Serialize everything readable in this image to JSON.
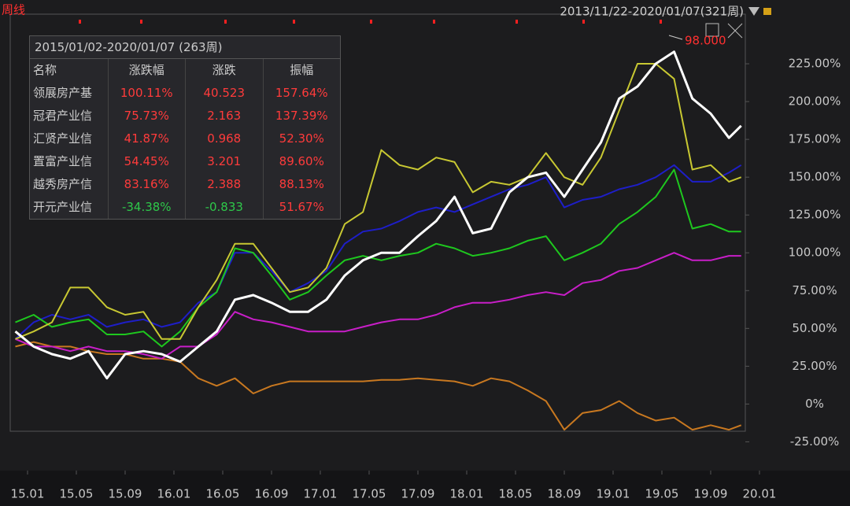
{
  "header": {
    "period": "周线",
    "range": "2013/11/22-2020/01/07(321周)"
  },
  "chart_data": {
    "type": "line",
    "annotation": "98.000",
    "x": [
      -1,
      0.5,
      2,
      3.5,
      5,
      6.5,
      8,
      9.5,
      11,
      12.5,
      14,
      15.5,
      17,
      18.5,
      20,
      21.5,
      23,
      24.5,
      26,
      27.5,
      29,
      30.5,
      32,
      33.5,
      35,
      36.5,
      38,
      39.5,
      41,
      42.5,
      44,
      45.5,
      47,
      48.5,
      50,
      51.5,
      53,
      54.5,
      56,
      57.5,
      58.5
    ],
    "xlim": [
      -1.42,
      58.84
    ],
    "xticks": [
      {
        "value": 0,
        "label": "15.01"
      },
      {
        "value": 4,
        "label": "15.05"
      },
      {
        "value": 8,
        "label": "15.09"
      },
      {
        "value": 12,
        "label": "16.01"
      },
      {
        "value": 16,
        "label": "16.05"
      },
      {
        "value": 20,
        "label": "16.09"
      },
      {
        "value": 24,
        "label": "17.01"
      },
      {
        "value": 28,
        "label": "17.05"
      },
      {
        "value": 32,
        "label": "17.09"
      },
      {
        "value": 36,
        "label": "18.01"
      },
      {
        "value": 40,
        "label": "18.05"
      },
      {
        "value": 44,
        "label": "18.09"
      },
      {
        "value": 48,
        "label": "19.01"
      },
      {
        "value": 52,
        "label": "19.05"
      },
      {
        "value": 56,
        "label": "19.09"
      },
      {
        "value": 60,
        "label": "20.01"
      }
    ],
    "ylim": [
      -18,
      257.8
    ],
    "yticks": [
      {
        "value": 225,
        "label": "225.00%"
      },
      {
        "value": 200,
        "label": "200.00%"
      },
      {
        "value": 175,
        "label": "175.00%"
      },
      {
        "value": 150,
        "label": "150.00%"
      },
      {
        "value": 125,
        "label": "125.00%"
      },
      {
        "value": 100,
        "label": "100.00%"
      },
      {
        "value": 75,
        "label": "75.00%"
      },
      {
        "value": 50,
        "label": "50.00%"
      },
      {
        "value": 25,
        "label": "25.00%"
      },
      {
        "value": 0,
        "label": "0%"
      },
      {
        "value": -25,
        "label": "-25.00%"
      }
    ],
    "grid": false,
    "series": [
      {
        "name": "领展房产基",
        "color": "#ffffff",
        "values": [
          48,
          38,
          33,
          30,
          35,
          17,
          33,
          35,
          33,
          28,
          38,
          48,
          69,
          72,
          67,
          61,
          61,
          69,
          85,
          95,
          100,
          100,
          111,
          121,
          137,
          113,
          116,
          140,
          150,
          153,
          137,
          155,
          173,
          202,
          210,
          225,
          233,
          202,
          192,
          176,
          184
        ]
      },
      {
        "name": "冠君产业信",
        "color": "#c8c832",
        "values": [
          43,
          48,
          54,
          77,
          77,
          64,
          59,
          61,
          43,
          43,
          64,
          82,
          106,
          106,
          90,
          74,
          77,
          90,
          119,
          127,
          168,
          158,
          155,
          163,
          160,
          140,
          147,
          145,
          150,
          166,
          150,
          145,
          163,
          194,
          225,
          225,
          215,
          155,
          158,
          147,
          150
        ]
      },
      {
        "name": "汇贤产业信",
        "color": "#c81ec8",
        "values": [
          43,
          38,
          38,
          35,
          38,
          35,
          35,
          33,
          30,
          38,
          38,
          46,
          61,
          56,
          54,
          51,
          48,
          48,
          48,
          51,
          54,
          56,
          56,
          59,
          64,
          67,
          67,
          69,
          72,
          74,
          72,
          80,
          82,
          88,
          90,
          95,
          100,
          95,
          95,
          98,
          98
        ]
      },
      {
        "name": "置富产业信",
        "color": "#1ec81e",
        "values": [
          54,
          59,
          51,
          54,
          56,
          46,
          46,
          48,
          38,
          48,
          64,
          74,
          103,
          100,
          85,
          69,
          74,
          85,
          95,
          98,
          95,
          98,
          100,
          106,
          103,
          98,
          100,
          103,
          108,
          111,
          95,
          100,
          106,
          119,
          127,
          137,
          155,
          116,
          119,
          114,
          114
        ]
      },
      {
        "name": "越秀房产信",
        "color": "#1e1ec8",
        "values": [
          43,
          54,
          59,
          56,
          59,
          51,
          54,
          56,
          51,
          54,
          67,
          74,
          100,
          100,
          88,
          74,
          80,
          88,
          106,
          114,
          116,
          121,
          127,
          130,
          127,
          132,
          137,
          142,
          145,
          150,
          130,
          135,
          137,
          142,
          145,
          150,
          158,
          147,
          147,
          153,
          158
        ]
      },
      {
        "name": "开元产业信",
        "color": "#c87820",
        "values": [
          38,
          41,
          38,
          38,
          35,
          33,
          33,
          30,
          30,
          28,
          17,
          12,
          17,
          7,
          12,
          15,
          15,
          15,
          15,
          15,
          16,
          16,
          17,
          16,
          15,
          12,
          17,
          15,
          9,
          2,
          -17,
          -6,
          -4,
          2,
          -6,
          -11,
          -9,
          -17,
          -14,
          -17,
          -14
        ]
      }
    ]
  },
  "stats_table": {
    "title": "2015/01/02-2020/01/07 (263周)",
    "columns": [
      "名称",
      "涨跌幅",
      "涨跌",
      "振幅"
    ],
    "rows": [
      [
        "100.11%",
        "40.523",
        "157.64%"
      ],
      [
        "75.73%",
        "2.163",
        "137.39%"
      ],
      [
        "41.87%",
        "0.968",
        "52.30%"
      ],
      [
        "54.45%",
        "3.201",
        "89.60%"
      ],
      [
        "83.16%",
        "2.388",
        "88.13%"
      ],
      [
        "-34.38%",
        "-0.833",
        "51.67%"
      ]
    ]
  }
}
